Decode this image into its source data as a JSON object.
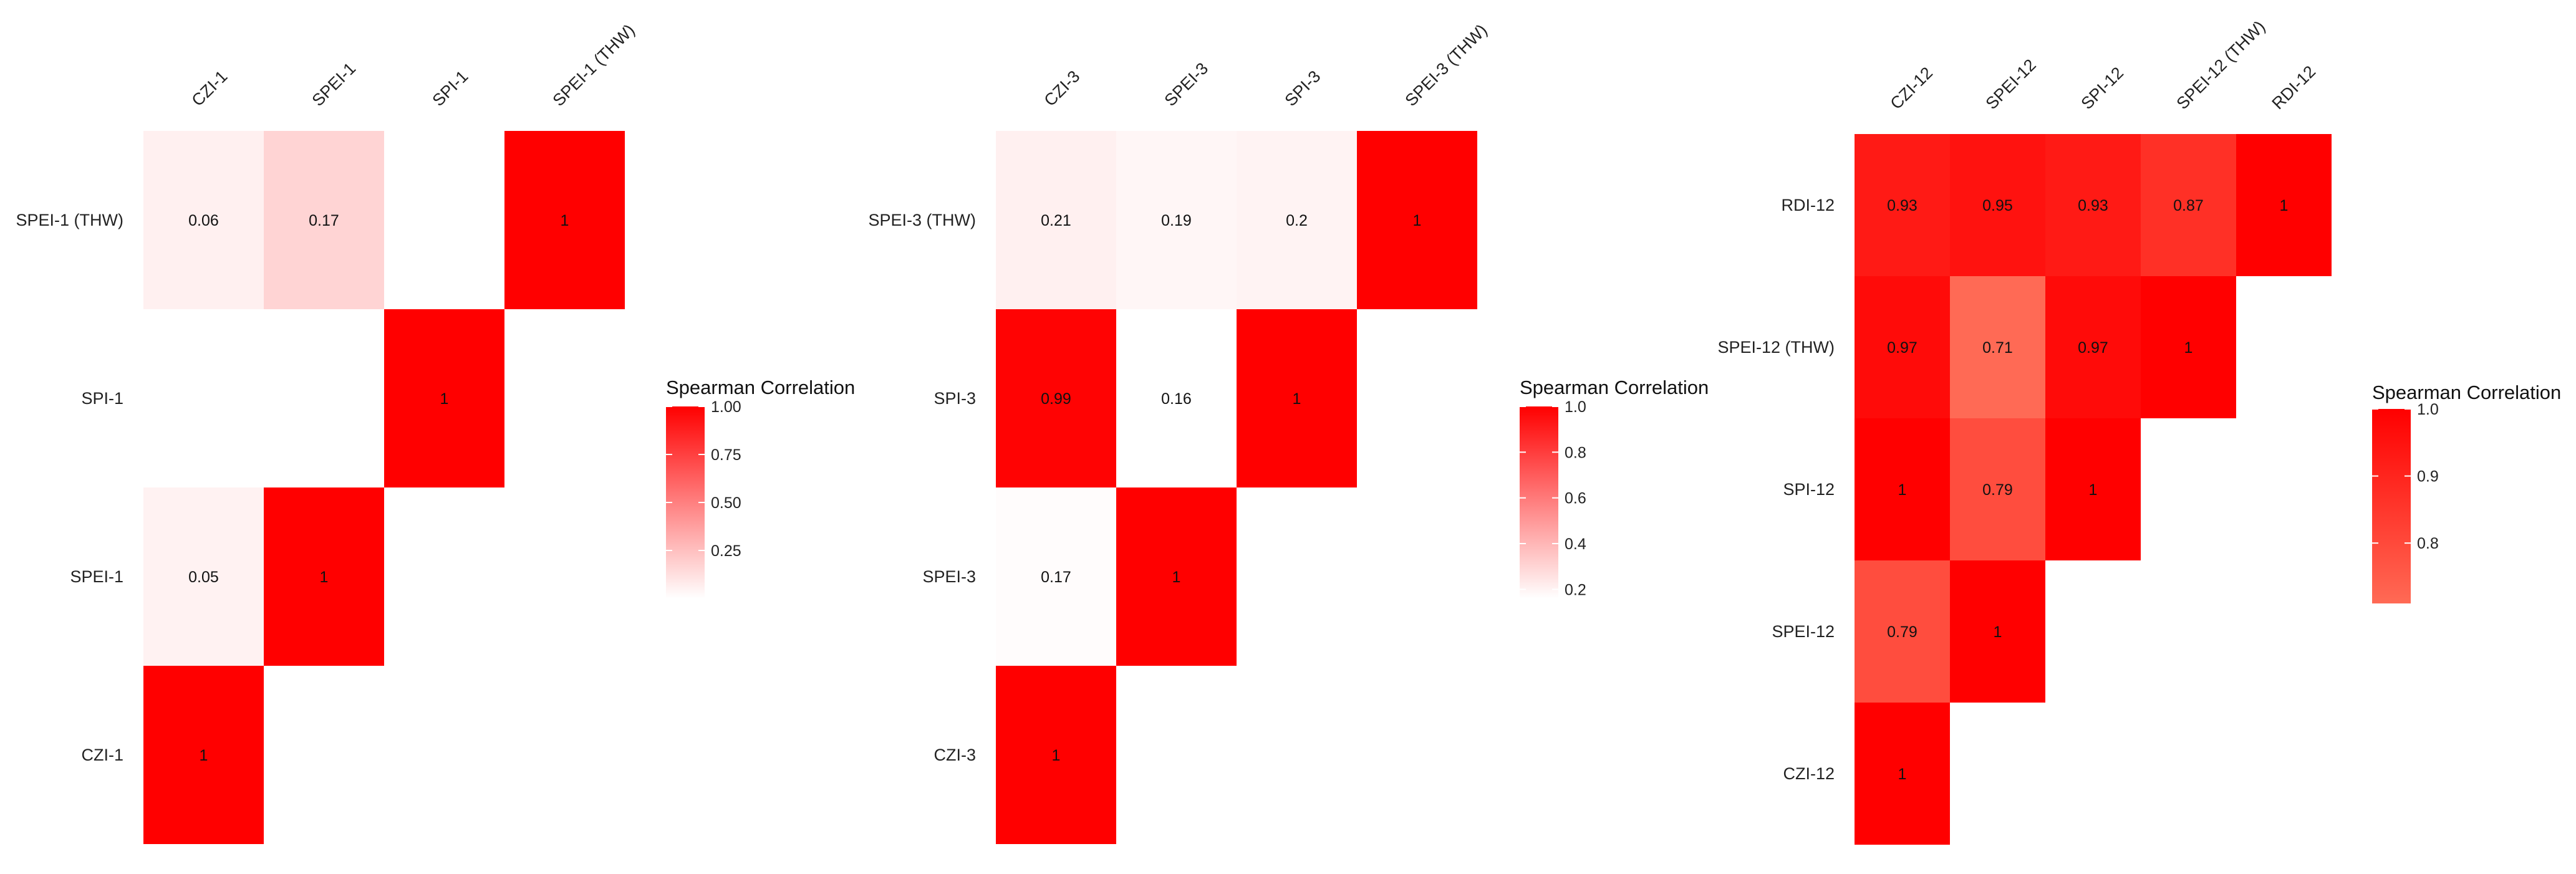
{
  "chart_data": [
    {
      "type": "heatmap",
      "x_labels": [
        "CZI-1",
        "SPEI-1",
        "SPI-1",
        "SPEI-1 (THW)"
      ],
      "y_labels": [
        "SPEI-1 (THW)",
        "SPI-1",
        "SPEI-1",
        "CZI-1"
      ],
      "cells": [
        {
          "x": "CZI-1",
          "y": "SPEI-1 (THW)",
          "value": 0.06,
          "label": "0.06"
        },
        {
          "x": "SPEI-1",
          "y": "SPEI-1 (THW)",
          "value": 0.17,
          "label": "0.17"
        },
        {
          "x": "SPI-1",
          "y": "SPEI-1 (THW)",
          "value": 0.0,
          "label": ""
        },
        {
          "x": "SPEI-1 (THW)",
          "y": "SPEI-1 (THW)",
          "value": 1,
          "label": "1"
        },
        {
          "x": "CZI-1",
          "y": "SPI-1",
          "value": 0.0,
          "label": ""
        },
        {
          "x": "SPEI-1",
          "y": "SPI-1",
          "value": 0.0,
          "label": ""
        },
        {
          "x": "SPI-1",
          "y": "SPI-1",
          "value": 1,
          "label": "1"
        },
        {
          "x": "CZI-1",
          "y": "SPEI-1",
          "value": 0.05,
          "label": "0.05"
        },
        {
          "x": "SPEI-1",
          "y": "SPEI-1",
          "value": 1,
          "label": "1"
        },
        {
          "x": "CZI-1",
          "y": "CZI-1",
          "value": 1,
          "label": "1"
        }
      ],
      "legend": {
        "title": "Spearman Correlation",
        "ticks": [
          "1.00",
          "0.75",
          "0.50",
          "0.25"
        ],
        "range": [
          0.0,
          1.0
        ]
      },
      "color_low": "#ffffff",
      "color_high": "#ff0000"
    },
    {
      "type": "heatmap",
      "x_labels": [
        "CZI-3",
        "SPEI-3",
        "SPI-3",
        "SPEI-3 (THW)"
      ],
      "y_labels": [
        "SPEI-3 (THW)",
        "SPI-3",
        "SPEI-3",
        "CZI-3"
      ],
      "cells": [
        {
          "x": "CZI-3",
          "y": "SPEI-3 (THW)",
          "value": 0.21,
          "label": "0.21"
        },
        {
          "x": "SPEI-3",
          "y": "SPEI-3 (THW)",
          "value": 0.19,
          "label": "0.19"
        },
        {
          "x": "SPI-3",
          "y": "SPEI-3 (THW)",
          "value": 0.2,
          "label": "0.2"
        },
        {
          "x": "SPEI-3 (THW)",
          "y": "SPEI-3 (THW)",
          "value": 1,
          "label": "1"
        },
        {
          "x": "CZI-3",
          "y": "SPI-3",
          "value": 0.99,
          "label": "0.99"
        },
        {
          "x": "SPEI-3",
          "y": "SPI-3",
          "value": 0.16,
          "label": "0.16"
        },
        {
          "x": "SPI-3",
          "y": "SPI-3",
          "value": 1,
          "label": "1"
        },
        {
          "x": "CZI-3",
          "y": "SPEI-3",
          "value": 0.17,
          "label": "0.17"
        },
        {
          "x": "SPEI-3",
          "y": "SPEI-3",
          "value": 1,
          "label": "1"
        },
        {
          "x": "CZI-3",
          "y": "CZI-3",
          "value": 1,
          "label": "1"
        }
      ],
      "legend": {
        "title": "Spearman Correlation",
        "ticks": [
          "1.0",
          "0.8",
          "0.6",
          "0.4",
          "0.2"
        ],
        "range": [
          0.16,
          1.0
        ]
      },
      "color_low": "#ffffff",
      "color_high": "#ff0000"
    },
    {
      "type": "heatmap",
      "x_labels": [
        "CZI-12",
        "SPEI-12",
        "SPI-12",
        "SPEI-12 (THW)",
        "RDI-12"
      ],
      "y_labels": [
        "RDI-12",
        "SPEI-12 (THW)",
        "SPI-12",
        "SPEI-12",
        "CZI-12"
      ],
      "cells": [
        {
          "x": "CZI-12",
          "y": "RDI-12",
          "value": 0.93,
          "label": "0.93"
        },
        {
          "x": "SPEI-12",
          "y": "RDI-12",
          "value": 0.95,
          "label": "0.95"
        },
        {
          "x": "SPI-12",
          "y": "RDI-12",
          "value": 0.93,
          "label": "0.93"
        },
        {
          "x": "SPEI-12 (THW)",
          "y": "RDI-12",
          "value": 0.87,
          "label": "0.87"
        },
        {
          "x": "RDI-12",
          "y": "RDI-12",
          "value": 1,
          "label": "1"
        },
        {
          "x": "CZI-12",
          "y": "SPEI-12 (THW)",
          "value": 0.97,
          "label": "0.97"
        },
        {
          "x": "SPEI-12",
          "y": "SPEI-12 (THW)",
          "value": 0.71,
          "label": "0.71"
        },
        {
          "x": "SPI-12",
          "y": "SPEI-12 (THW)",
          "value": 0.97,
          "label": "0.97"
        },
        {
          "x": "SPEI-12 (THW)",
          "y": "SPEI-12 (THW)",
          "value": 1,
          "label": "1"
        },
        {
          "x": "CZI-12",
          "y": "SPI-12",
          "value": 1,
          "label": "1"
        },
        {
          "x": "SPEI-12",
          "y": "SPI-12",
          "value": 0.79,
          "label": "0.79"
        },
        {
          "x": "SPI-12",
          "y": "SPI-12",
          "value": 1,
          "label": "1"
        },
        {
          "x": "CZI-12",
          "y": "SPEI-12",
          "value": 0.79,
          "label": "0.79"
        },
        {
          "x": "SPEI-12",
          "y": "SPEI-12",
          "value": 1,
          "label": "1"
        },
        {
          "x": "CZI-12",
          "y": "CZI-12",
          "value": 1,
          "label": "1"
        }
      ],
      "legend": {
        "title": "Spearman Correlation",
        "ticks": [
          "1.0",
          "0.9",
          "0.8"
        ],
        "range": [
          0.71,
          1.0
        ]
      },
      "color_low": "#ff6a55",
      "color_high": "#ff0000"
    }
  ]
}
